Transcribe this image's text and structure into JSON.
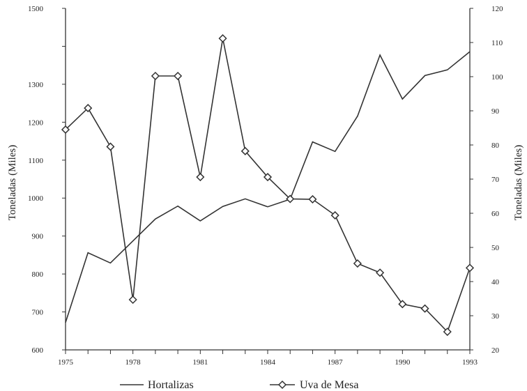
{
  "chart_data": {
    "type": "line",
    "title": "",
    "xlabel": "",
    "ylabel": "Toneladas (Miles)",
    "y2label": "Toneladas (Miles)",
    "x": [
      1975,
      1976,
      1977,
      1978,
      1979,
      1980,
      1981,
      1982,
      1983,
      1984,
      1985,
      1986,
      1987,
      1988,
      1989,
      1990,
      1991,
      1992,
      1993
    ],
    "xticks": [
      "1975",
      "1978",
      "1981",
      "1984",
      "1987",
      "1990",
      "1993"
    ],
    "xlim": [
      1975,
      1993
    ],
    "yticks": [
      "600",
      "700",
      "800",
      "900",
      "1000",
      "1100",
      "1200",
      "1300",
      "1500"
    ],
    "ylim": [
      600,
      1500
    ],
    "y2ticks": [
      "20",
      "30",
      "40",
      "50",
      "60",
      "70",
      "80",
      "90",
      "100",
      "110",
      "120"
    ],
    "y2lim": [
      20,
      120
    ],
    "grid": false,
    "legend_position": "bottom",
    "series": [
      {
        "name": "Hortalizas",
        "axis": "left",
        "marker": "none",
        "color": "#333333",
        "values": [
          672,
          856,
          829,
          887,
          945,
          979,
          940,
          978,
          998,
          977,
          997,
          1148,
          1123,
          1216,
          1377,
          1261,
          1323,
          1338,
          1386
        ]
      },
      {
        "name": "Uva de Mesa",
        "axis": "right",
        "marker": "diamond",
        "color": "#333333",
        "values": [
          84.5,
          90.8,
          79.5,
          34.7,
          100.2,
          100.2,
          70.6,
          111.2,
          78.2,
          70.6,
          64.2,
          64.1,
          59.4,
          45.3,
          42.6,
          33.4,
          32.1,
          25.3,
          44.0
        ]
      }
    ]
  }
}
